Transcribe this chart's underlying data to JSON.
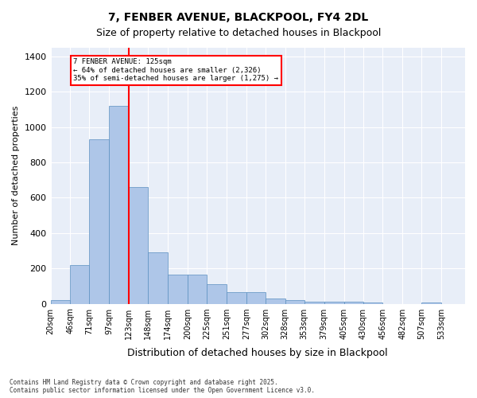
{
  "title1": "7, FENBER AVENUE, BLACKPOOL, FY4 2DL",
  "title2": "Size of property relative to detached houses in Blackpool",
  "xlabel": "Distribution of detached houses by size in Blackpool",
  "ylabel": "Number of detached properties",
  "bar_color": "#aec6e8",
  "bar_edge_color": "#5a8fc0",
  "background_color": "#e8eef8",
  "vline_x": 123,
  "vline_color": "red",
  "annotation_text": "7 FENBER AVENUE: 125sqm\n← 64% of detached houses are smaller (2,326)\n35% of semi-detached houses are larger (1,275) →",
  "bins_labels": [
    "20sqm",
    "46sqm",
    "71sqm",
    "97sqm",
    "123sqm",
    "148sqm",
    "174sqm",
    "200sqm",
    "225sqm",
    "251sqm",
    "277sqm",
    "302sqm",
    "328sqm",
    "353sqm",
    "379sqm",
    "405sqm",
    "430sqm",
    "456sqm",
    "482sqm",
    "507sqm",
    "533sqm"
  ],
  "bin_edges": [
    20,
    46,
    71,
    97,
    123,
    148,
    174,
    200,
    225,
    251,
    277,
    302,
    328,
    353,
    379,
    405,
    430,
    456,
    482,
    507,
    533
  ],
  "bin_heights": [
    20,
    220,
    930,
    1120,
    660,
    290,
    165,
    165,
    110,
    65,
    65,
    30,
    20,
    10,
    10,
    10,
    5,
    0,
    0,
    5,
    0
  ],
  "ylim": [
    0,
    1450
  ],
  "yticks": [
    0,
    200,
    400,
    600,
    800,
    1000,
    1200,
    1400
  ],
  "footnote": "Contains HM Land Registry data © Crown copyright and database right 2025.\nContains public sector information licensed under the Open Government Licence v3.0.",
  "figsize": [
    6.0,
    5.0
  ],
  "dpi": 100
}
